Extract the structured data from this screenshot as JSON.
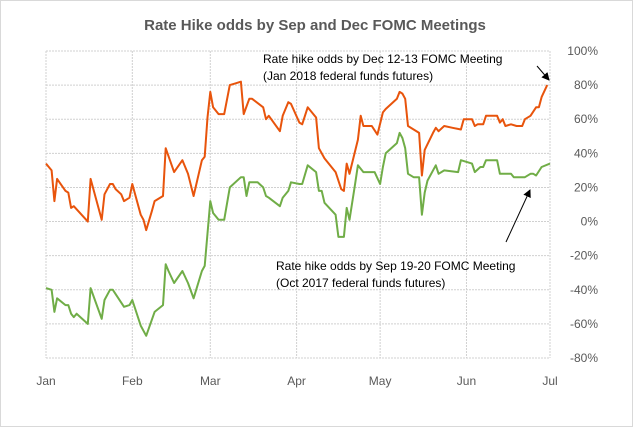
{
  "chart_data": {
    "type": "line",
    "title": "Rate Hike odds by Sep and Dec FOMC Meetings",
    "xlabel": "",
    "ylabel": "",
    "x_unit": "days since Jan 1, 2017",
    "xlim": [
      0,
      181
    ],
    "ylim": [
      -80,
      100
    ],
    "grid": true,
    "y_axis_side": "right",
    "x_ticks": [
      {
        "label": "Jan",
        "day": 0
      },
      {
        "label": "Feb",
        "day": 31
      },
      {
        "label": "Mar",
        "day": 59
      },
      {
        "label": "Apr",
        "day": 90
      },
      {
        "label": "May",
        "day": 120
      },
      {
        "label": "Jun",
        "day": 151
      },
      {
        "label": "Jul",
        "day": 181
      }
    ],
    "y_ticks": [
      {
        "label": "100%",
        "value": 100
      },
      {
        "label": "80%",
        "value": 80
      },
      {
        "label": "60%",
        "value": 60
      },
      {
        "label": "40%",
        "value": 40
      },
      {
        "label": "20%",
        "value": 20
      },
      {
        "label": "0%",
        "value": 0
      },
      {
        "label": "-20%",
        "value": -20
      },
      {
        "label": "-40%",
        "value": -40
      },
      {
        "label": "-60%",
        "value": -60
      },
      {
        "label": "-80%",
        "value": -80
      }
    ],
    "series": [
      {
        "name": "Dec",
        "color": "#E8540C",
        "x": [
          0,
          2,
          3,
          4,
          7,
          8,
          9,
          10,
          15,
          16,
          20,
          21,
          23,
          24,
          25,
          27,
          28,
          30,
          31,
          34,
          35,
          36,
          38,
          39,
          42,
          43,
          46,
          49,
          51,
          53,
          56,
          57,
          58,
          59,
          60,
          62,
          64,
          66,
          68,
          70,
          71,
          73,
          74,
          78,
          79,
          80,
          84,
          85,
          87,
          88,
          91,
          92,
          94,
          97,
          98,
          100,
          104,
          106,
          107,
          108,
          109,
          112,
          113,
          114,
          117,
          119,
          121,
          122,
          126,
          127,
          128,
          129,
          130,
          134,
          135,
          136,
          139,
          140,
          141,
          143,
          146,
          149,
          150,
          153,
          154,
          155,
          157,
          158,
          162,
          163,
          164,
          165,
          167,
          169,
          171,
          172,
          174,
          176,
          177,
          178,
          180
        ],
        "y": [
          34,
          30,
          12,
          25,
          18,
          17,
          8,
          9,
          0,
          25,
          1,
          16,
          22,
          22,
          19,
          16,
          12,
          14,
          22,
          4,
          1,
          -5,
          6,
          12,
          15,
          43,
          29,
          36,
          28,
          15,
          36,
          38,
          61,
          76,
          67,
          63,
          63,
          80,
          81,
          82,
          63,
          72,
          72,
          67,
          60,
          62,
          53,
          62,
          70,
          69,
          58,
          57,
          67,
          61,
          43,
          37,
          29,
          19,
          18,
          34,
          28,
          48,
          62,
          56,
          56,
          51,
          64,
          66,
          72,
          76,
          75,
          72,
          56,
          52,
          27,
          42,
          52,
          55,
          53,
          56,
          55,
          54,
          60,
          60,
          56,
          57,
          57,
          62,
          62,
          58,
          60,
          56,
          57,
          56,
          56,
          60,
          62,
          67,
          67,
          73,
          80
        ]
      },
      {
        "name": "Sep",
        "color": "#70AD47",
        "x": [
          0,
          2,
          3,
          4,
          7,
          8,
          9,
          10,
          11,
          15,
          16,
          20,
          21,
          23,
          24,
          28,
          30,
          31,
          34,
          36,
          39,
          42,
          43,
          44,
          46,
          49,
          51,
          53,
          56,
          57,
          59,
          60,
          62,
          64,
          66,
          70,
          71,
          72,
          73,
          76,
          78,
          79,
          80,
          84,
          85,
          87,
          88,
          91,
          92,
          94,
          97,
          98,
          99,
          100,
          104,
          105,
          107,
          108,
          109,
          111,
          112,
          114,
          118,
          120,
          121,
          122,
          126,
          127,
          128,
          129,
          130,
          132,
          134,
          135,
          136,
          137,
          140,
          141,
          143,
          148,
          149,
          153,
          154,
          156,
          157,
          158,
          162,
          163,
          167,
          168,
          172,
          174,
          175,
          176,
          178,
          181
        ],
        "y": [
          -39,
          -40,
          -53,
          -45,
          -49,
          -49,
          -54,
          -56,
          -54,
          -60,
          -39,
          -57,
          -46,
          -40,
          -40,
          -50,
          -49,
          -46,
          -61,
          -67,
          -53,
          -49,
          -25,
          -29,
          -36,
          -29,
          -36,
          -45,
          -29,
          -26,
          12,
          5,
          1,
          1,
          20,
          26,
          26,
          15,
          23,
          23,
          20,
          15,
          14,
          9,
          14,
          18,
          23,
          22,
          22,
          33,
          29,
          18,
          18,
          11,
          4,
          -9,
          -9,
          8,
          1,
          22,
          33,
          29,
          29,
          22,
          32,
          40,
          46,
          52,
          49,
          43,
          28,
          26,
          26,
          4,
          17,
          24,
          33,
          28,
          30,
          29,
          36,
          34,
          29,
          32,
          32,
          36,
          36,
          28,
          28,
          26,
          26,
          28,
          28,
          27,
          32,
          34
        ]
      }
    ],
    "annotations": {
      "dec_line1": "Rate hike odds by Dec 12-13  FOMC Meeting",
      "dec_line2": "(Jan 2018  federal funds futures)",
      "sep_line1": "Rate hike odds by Sep 19-20  FOMC Meeting",
      "sep_line2": "(Oct 2017  federal funds futures)"
    }
  }
}
